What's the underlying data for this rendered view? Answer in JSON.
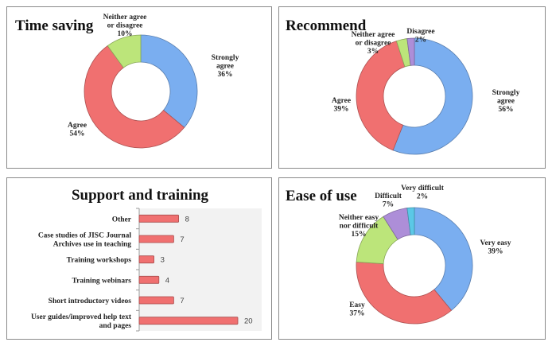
{
  "chart_data": [
    {
      "type": "pie",
      "title": "Time saving",
      "categories": [
        "Strongly agree",
        "Agree",
        "Neither agree or disagree"
      ],
      "values": [
        36,
        54,
        10
      ],
      "value_labels": [
        "36%",
        "54%",
        "10%"
      ],
      "label_lines": [
        [
          "Strongly",
          "agree",
          "36%"
        ],
        [
          "Agree",
          "54%"
        ],
        [
          "Neither agree",
          "or disagree",
          "10%"
        ]
      ],
      "colors": [
        "#7aaef0",
        "#f07070",
        "#bce57a"
      ]
    },
    {
      "type": "pie",
      "title": "Recommend",
      "categories": [
        "Strongly agree",
        "Agree",
        "Neither agree or disagree",
        "Disagree"
      ],
      "values": [
        56,
        39,
        3,
        2
      ],
      "value_labels": [
        "56%",
        "39%",
        "3%",
        "2%"
      ],
      "label_lines": [
        [
          "Strongly",
          "agree",
          "56%"
        ],
        [
          "Agree",
          "39%"
        ],
        [
          "Neither agree",
          "or disagree",
          "3%"
        ],
        [
          "Disagree",
          "2%"
        ]
      ],
      "colors": [
        "#7aaef0",
        "#f07070",
        "#bce57a",
        "#ad8ed8"
      ]
    },
    {
      "type": "bar",
      "orientation": "horizontal",
      "title": "Support and training",
      "categories": [
        "Other",
        "Case studies of JISC Journal Archives use in teaching",
        "Training workshops",
        "Training webinars",
        "Short introductory videos",
        "User guides/improved help text and pages"
      ],
      "category_lines": [
        [
          "Other"
        ],
        [
          "Case studies of JISC Journal",
          "Archives use in teaching"
        ],
        [
          "Training workshops"
        ],
        [
          "Training webinars"
        ],
        [
          "Short introductory videos"
        ],
        [
          "User guides/improved help text",
          "and pages"
        ]
      ],
      "values": [
        8,
        7,
        3,
        4,
        7,
        20
      ],
      "value_labels": [
        "8",
        "7",
        "3",
        "4",
        "7",
        "20"
      ],
      "xlim": [
        0,
        20
      ],
      "color": "#f07070"
    },
    {
      "type": "pie",
      "title": "Ease of use",
      "categories": [
        "Very easy",
        "Easy",
        "Neither easy nor difficult",
        "Difficult",
        "Very difficult"
      ],
      "values": [
        39,
        37,
        15,
        7,
        2
      ],
      "value_labels": [
        "39%",
        "37%",
        "15%",
        "7%",
        "2%"
      ],
      "label_lines": [
        [
          "Very easy",
          "39%"
        ],
        [
          "Easy",
          "37%"
        ],
        [
          "Neither easy",
          "nor difficult",
          "15%"
        ],
        [
          "Difficult",
          "7%"
        ],
        [
          "Very difficult",
          "2%"
        ]
      ],
      "colors": [
        "#7aaef0",
        "#f07070",
        "#bce57a",
        "#ad8ed8",
        "#5bc8e6"
      ]
    }
  ]
}
